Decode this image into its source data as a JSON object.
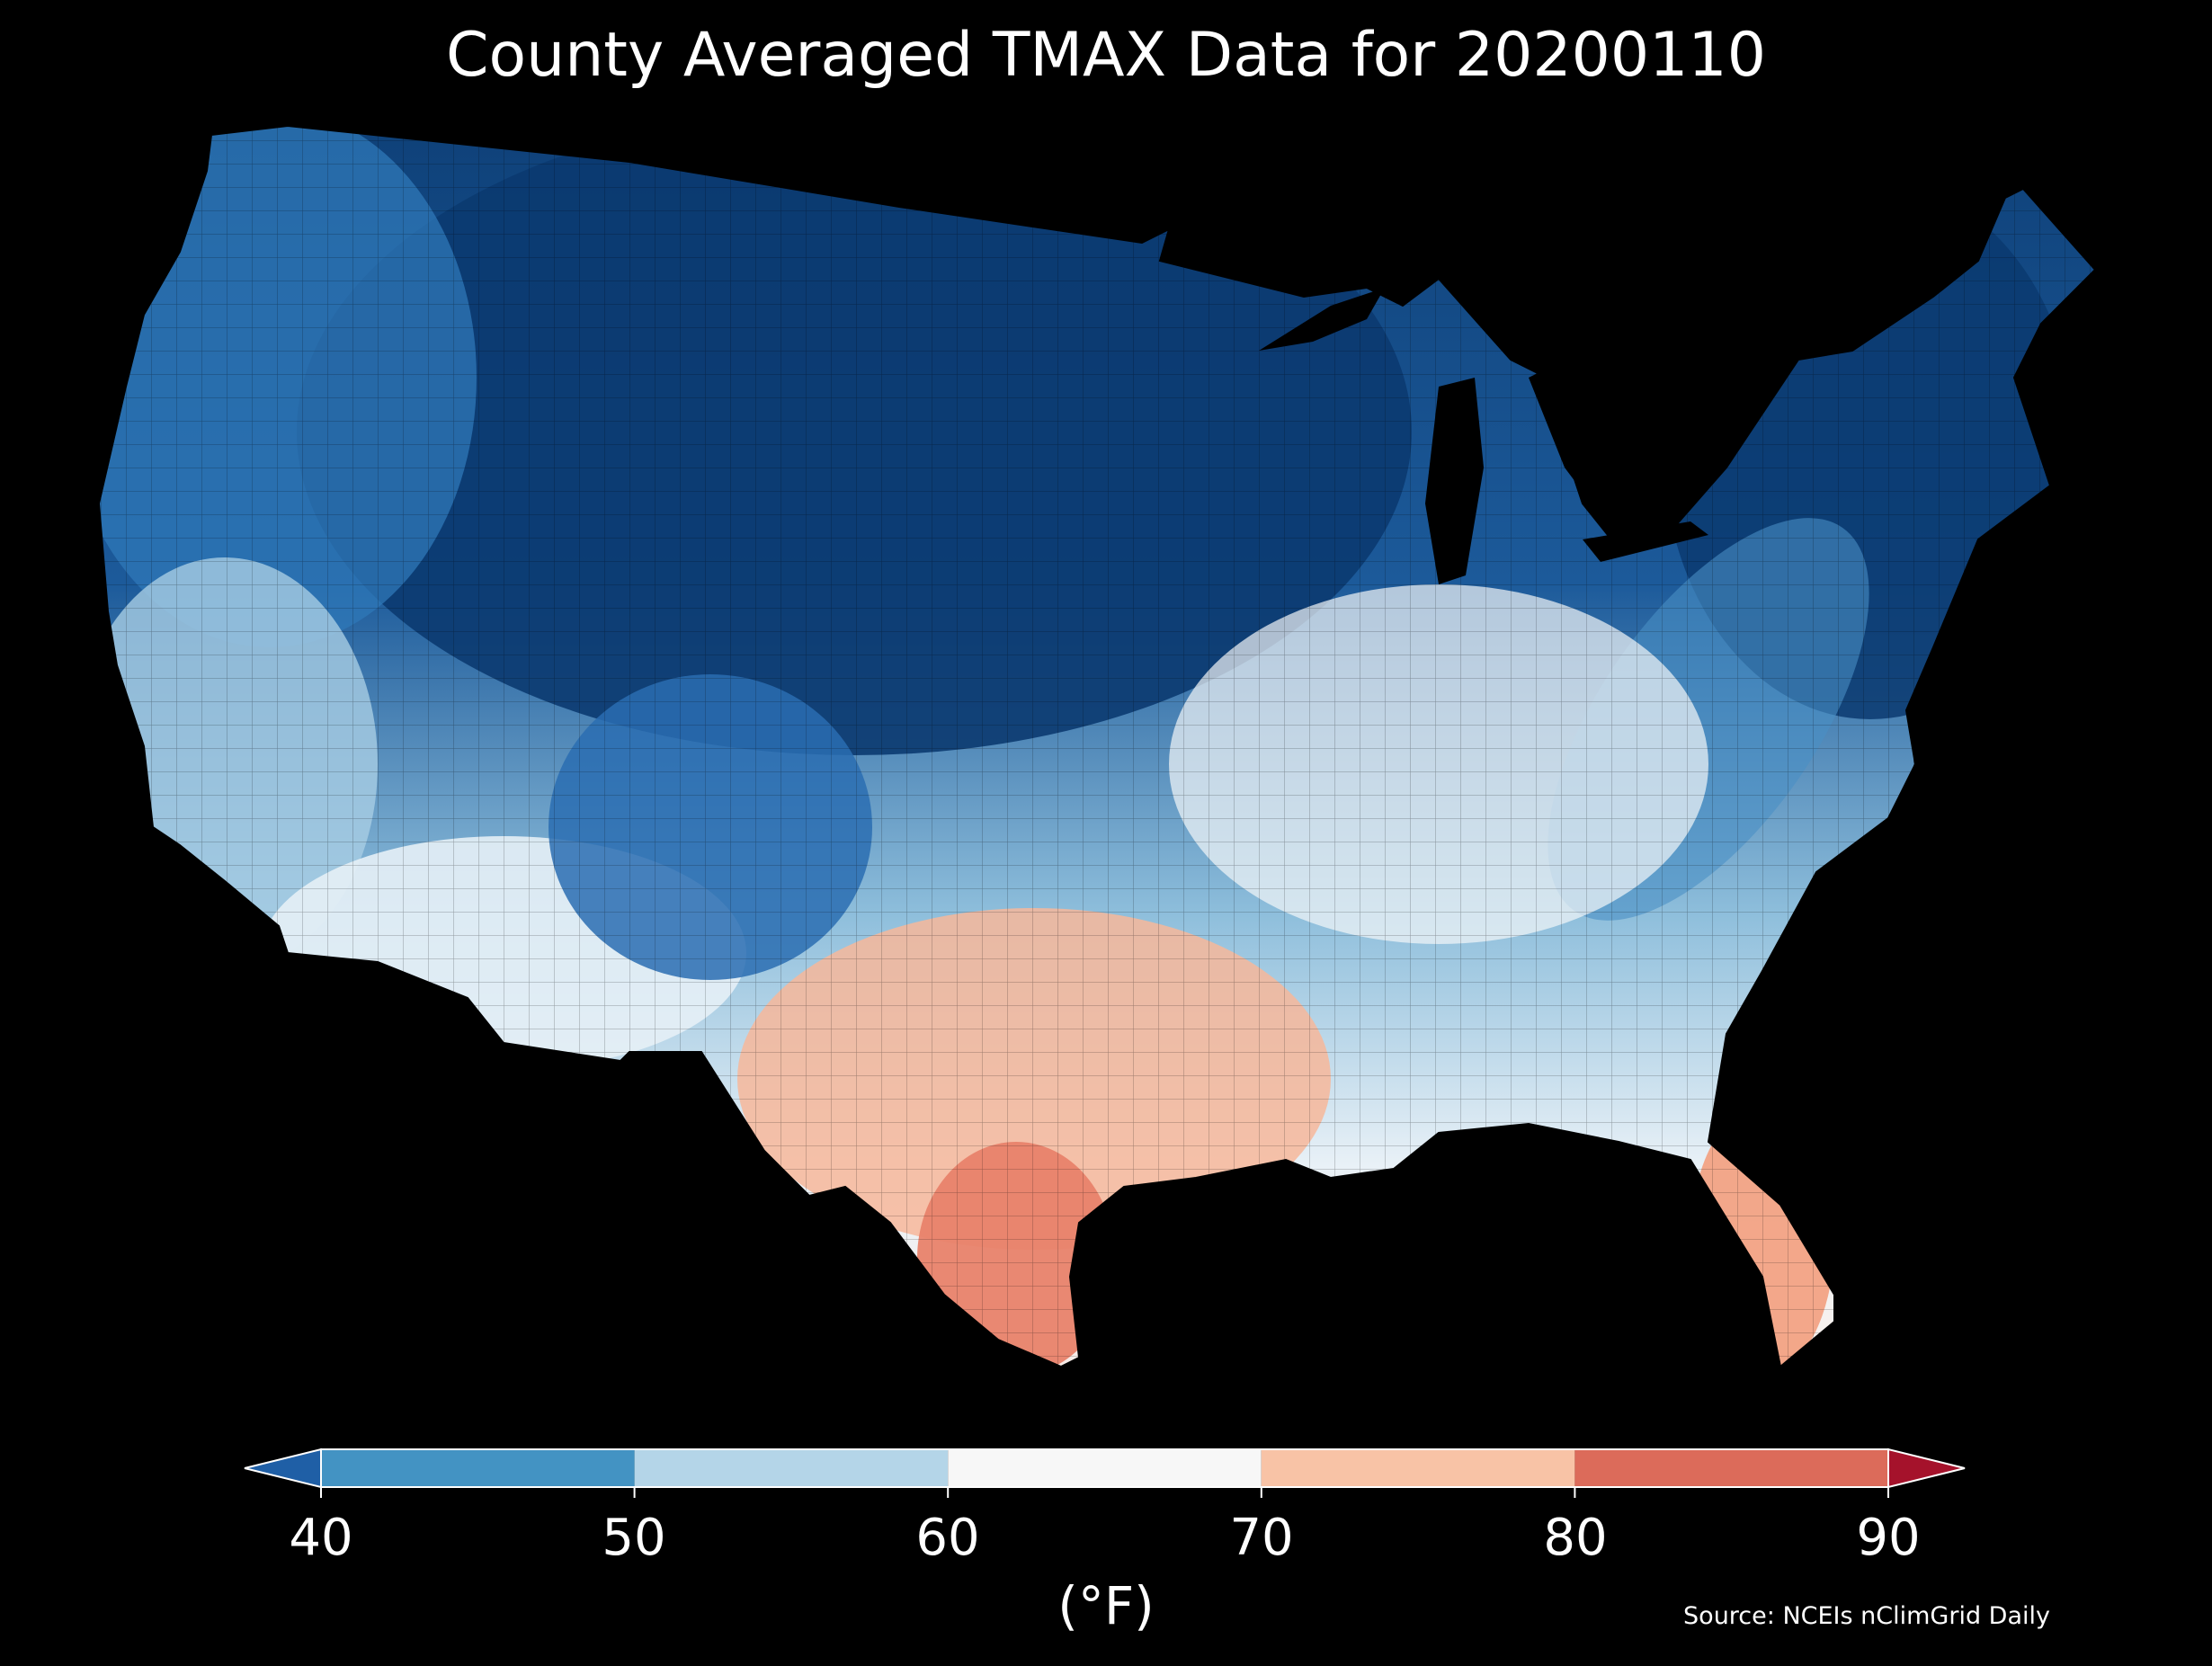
{
  "title": "County Averaged TMAX Data for 20200110",
  "source": "Source: NCEIs nClimGrid Daily",
  "colorbar": {
    "unit_label": "(°F)",
    "ticks": [
      "40",
      "50",
      "60",
      "70",
      "80",
      "90"
    ],
    "bins": [
      {
        "range": [
          40,
          50
        ],
        "color": "#4393c3"
      },
      {
        "range": [
          50,
          60
        ],
        "color": "#b4d5e8"
      },
      {
        "range": [
          60,
          70
        ],
        "color": "#f7f7f7"
      },
      {
        "range": [
          70,
          80
        ],
        "color": "#f8c3a6"
      },
      {
        "range": [
          80,
          90
        ],
        "color": "#dc6b5a"
      }
    ],
    "under_color": "#1f5fa6",
    "over_color": "#a5122b"
  },
  "map": {
    "background": "#000000",
    "regions": [
      {
        "name": "northern-plains-rockies",
        "tmax_bin": "<40",
        "color": "#0b3a70"
      },
      {
        "name": "pacific-northwest",
        "tmax_bin": "40-50",
        "color": "#2f78b8"
      },
      {
        "name": "new-england",
        "tmax_bin": "<40",
        "color": "#0b3a70"
      },
      {
        "name": "california-coast",
        "tmax_bin": "50-60",
        "color": "#a7cde3"
      },
      {
        "name": "southwest",
        "tmax_bin": "60-70",
        "color": "#e6eff6"
      },
      {
        "name": "ohio-valley",
        "tmax_bin": "60-70",
        "color": "#f4f6f8"
      },
      {
        "name": "texas-gulf",
        "tmax_bin": "70-80",
        "color": "#f7b79a"
      },
      {
        "name": "south-texas",
        "tmax_bin": "80-90",
        "color": "#e8826a"
      },
      {
        "name": "florida",
        "tmax_bin": "70-80",
        "color": "#f2a284"
      }
    ]
  }
}
